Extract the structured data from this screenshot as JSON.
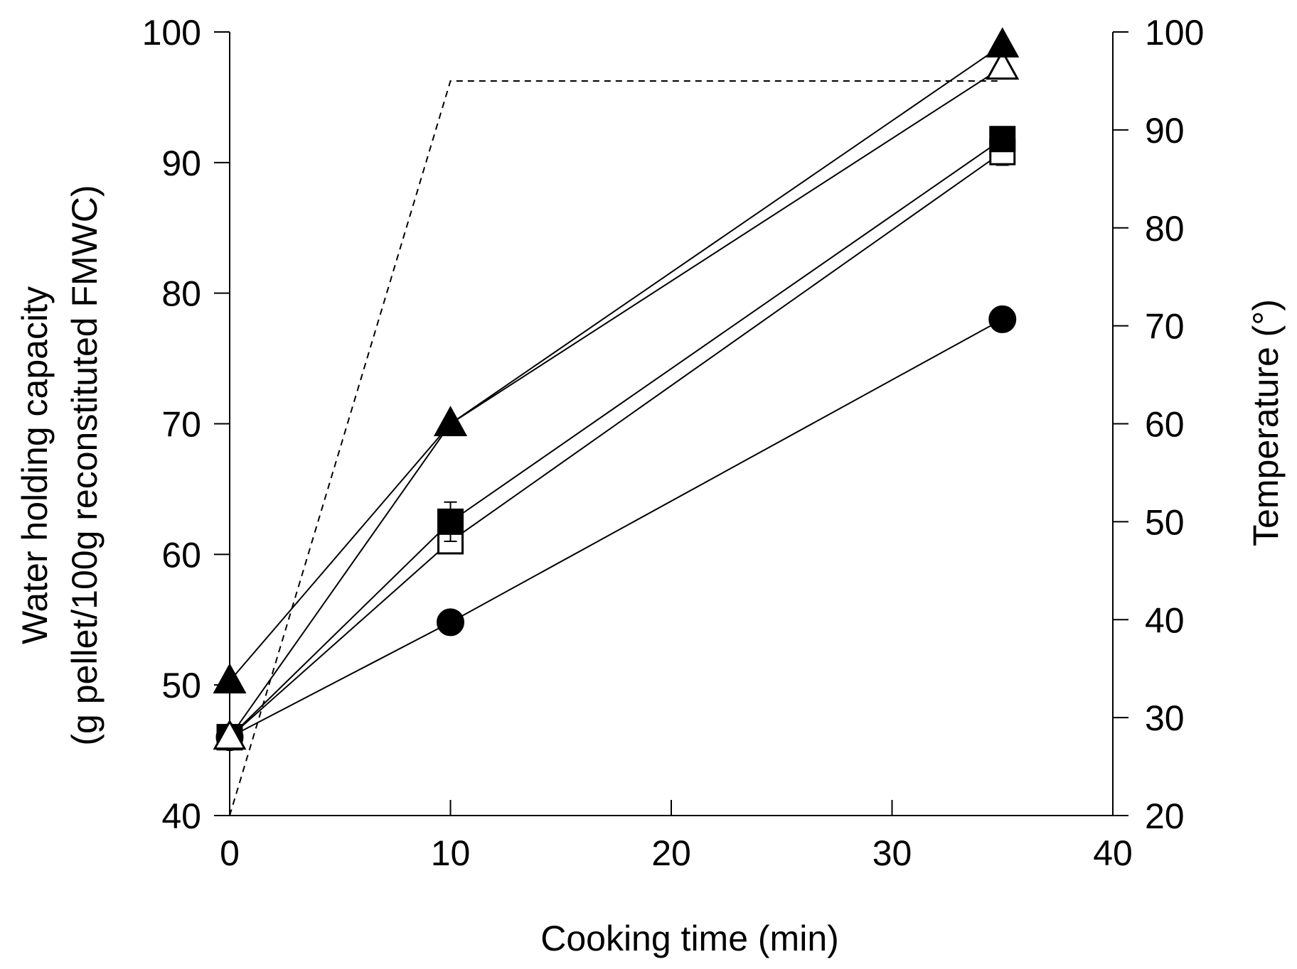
{
  "chart_data": {
    "type": "line",
    "xlabel": "Cooking time (min)",
    "ylabel_line1": "Water holding capacity",
    "ylabel_line2": "(g pellet/100g reconstituted FMWC)",
    "y2label": "Temperature (°)",
    "xlim": [
      0,
      40
    ],
    "ylim": [
      40,
      100
    ],
    "y2lim": [
      20,
      100
    ],
    "xticks": [
      0,
      10,
      20,
      30,
      40
    ],
    "yticks": [
      40,
      50,
      60,
      70,
      80,
      90,
      100
    ],
    "y2ticks": [
      20,
      30,
      40,
      50,
      60,
      70,
      80,
      90,
      100
    ],
    "grid": false,
    "legend": "none",
    "x": [
      0,
      10,
      35
    ],
    "series": [
      {
        "marker": "filled-circle",
        "values": [
          46.0,
          54.8,
          78.0
        ],
        "err": [
          0,
          0,
          0
        ]
      },
      {
        "marker": "open-square",
        "values": [
          46.0,
          61.0,
          90.8
        ],
        "err": [
          0,
          0,
          1.0
        ]
      },
      {
        "marker": "filled-square",
        "values": [
          46.0,
          62.5,
          91.8
        ],
        "err": [
          0,
          1.5,
          0
        ]
      },
      {
        "marker": "open-triangle",
        "values": [
          46.0,
          70.0,
          97.3
        ],
        "err": [
          0,
          0,
          0
        ]
      },
      {
        "marker": "filled-triangle",
        "values": [
          50.3,
          70.0,
          99.0
        ],
        "err": [
          0,
          0,
          0
        ]
      }
    ],
    "temperature": {
      "x": [
        0,
        10,
        35
      ],
      "values": [
        20,
        95,
        95
      ],
      "style": "dashed"
    }
  }
}
